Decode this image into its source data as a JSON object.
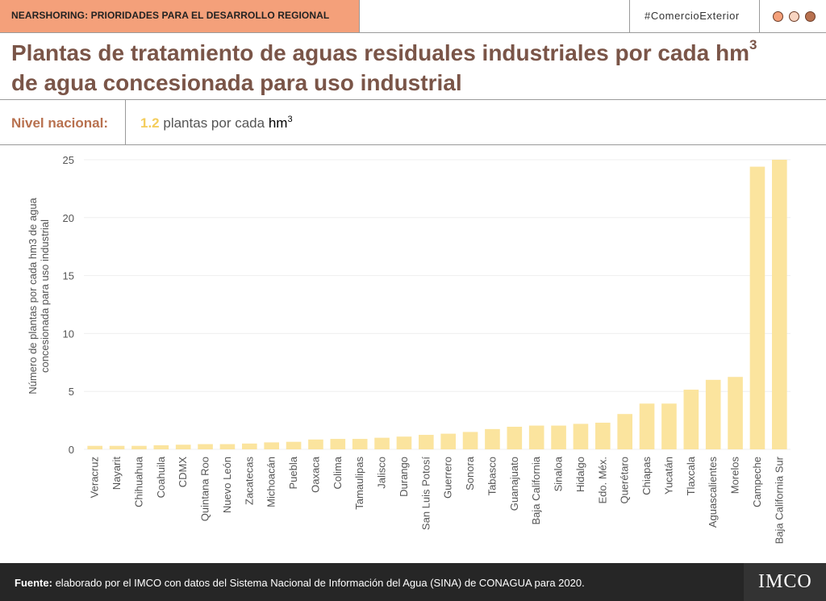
{
  "header": {
    "section_tag": "NEARSHORING: PRIORIDADES PARA EL DESARROLLO REGIONAL",
    "hashtag": "#ComercioExterior"
  },
  "window_controls": [
    {
      "name": "control-dot-1",
      "fill": "#F4A07A"
    },
    {
      "name": "control-dot-2",
      "fill": "#F8D5C2"
    },
    {
      "name": "control-dot-3",
      "fill": "#B8714F"
    }
  ],
  "title": {
    "line1": "Plantas de tratamiento de aguas residuales industriales por cada hm",
    "sup": "3",
    "line2": "de agua concesionada para uso industrial"
  },
  "national": {
    "label": "Nivel nacional:",
    "value": "1.2",
    "text": "plantas por cada",
    "unit": "hm",
    "sup": "3"
  },
  "chart_data": {
    "type": "bar",
    "ylabel_line1": "Número de plantas por cada hm3 de agua",
    "ylabel_line2": "concesionada para uso industrial",
    "ylim": [
      0,
      25
    ],
    "yticks": [
      0,
      5,
      10,
      15,
      20,
      25
    ],
    "grid": true,
    "bar_color": "#FBE49E",
    "categories": [
      "Veracruz",
      "Nayarit",
      "Chihuahua",
      "Coahuila",
      "CDMX",
      "Quintana Roo",
      "Nuevo León",
      "Zacatecas",
      "Michoacán",
      "Puebla",
      "Oaxaca",
      "Colima",
      "Tamaulipas",
      "Jalisco",
      "Durango",
      "San Luis Potosí",
      "Guerrero",
      "Sonora",
      "Tabasco",
      "Guanajuato",
      "Baja California",
      "Sinaloa",
      "Hidalgo",
      "Edo. Méx.",
      "Querétaro",
      "Chiapas",
      "Yucatán",
      "Tlaxcala",
      "Aguascalientes",
      "Morelos",
      "Campeche",
      "Baja California Sur"
    ],
    "values": [
      0.3,
      0.3,
      0.3,
      0.35,
      0.4,
      0.45,
      0.45,
      0.5,
      0.6,
      0.65,
      0.85,
      0.9,
      0.9,
      1.0,
      1.1,
      1.25,
      1.35,
      1.5,
      1.75,
      1.95,
      2.05,
      2.05,
      2.2,
      2.3,
      3.05,
      3.95,
      3.95,
      5.15,
      6.0,
      6.25,
      24.4,
      25.0
    ]
  },
  "footer": {
    "source_label": "Fuente:",
    "source_text": "elaborado por el IMCO con datos del Sistema Nacional de Información del Agua (SINA) de CONAGUA para 2020.",
    "logo": "IMCO"
  }
}
